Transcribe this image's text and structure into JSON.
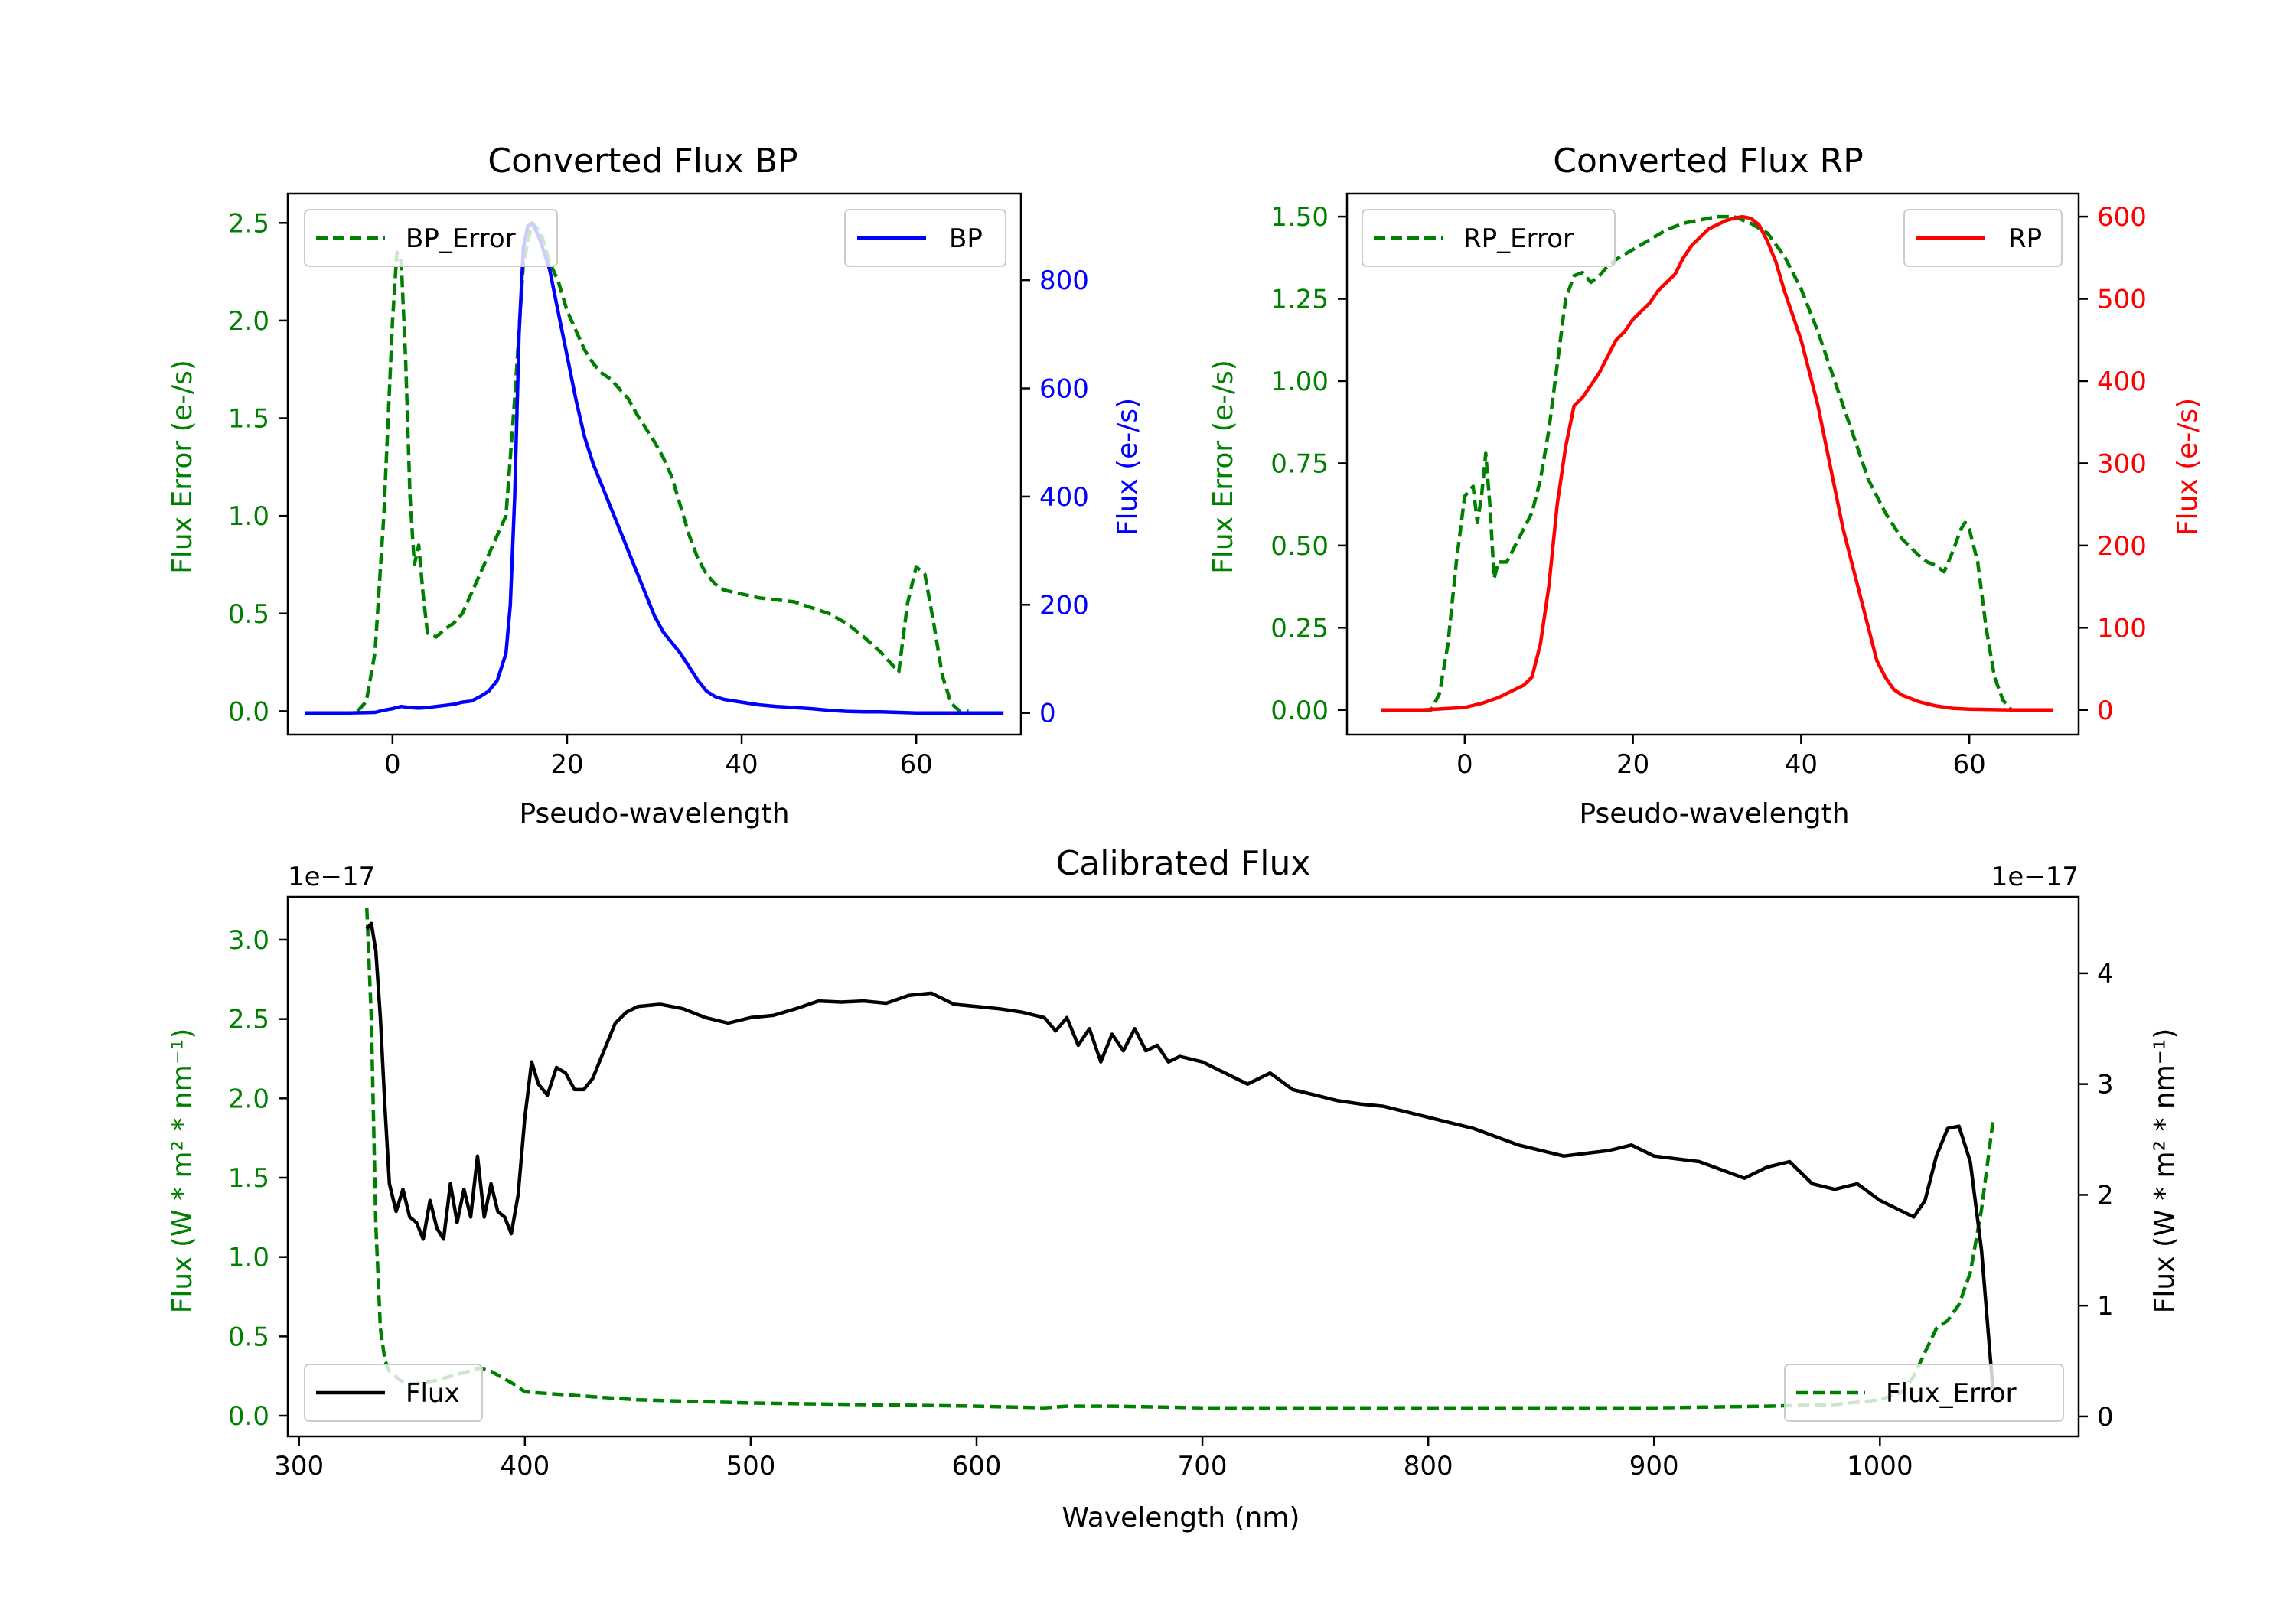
{
  "colors": {
    "green": "#008000",
    "blue": "#0000ff",
    "red": "#ff0000",
    "black": "#000000"
  },
  "chart_data": [
    {
      "type": "line",
      "title": "Converted Flux BP",
      "xlabel": "Pseudo-wavelength",
      "ylabel_left": "Flux Error (e-/s)",
      "ylabel_right": "Flux (e-/s)",
      "xlim": [
        -12,
        72
      ],
      "ylim_left": [
        -0.12,
        2.65
      ],
      "ylim_right": [
        -40,
        960
      ],
      "xticks": [
        0,
        20,
        40,
        60
      ],
      "yticks_left": [
        "0.0",
        "0.5",
        "1.0",
        "1.5",
        "2.0",
        "2.5"
      ],
      "yticks_right": [
        "0",
        "200",
        "400",
        "600",
        "800"
      ],
      "legend_left": "BP_Error",
      "legend_right": "BP",
      "series": [
        {
          "name": "BP_Error",
          "axis": "left",
          "style": "dashed",
          "color": "#008000",
          "x": [
            -4,
            -3,
            -2,
            -1,
            0,
            0.5,
            1,
            1.5,
            2,
            2.5,
            3,
            3.5,
            4,
            5,
            6,
            7,
            8,
            9,
            10,
            11,
            12,
            13,
            14,
            15,
            16,
            17,
            18,
            19,
            20,
            21,
            22,
            23,
            24,
            25,
            26,
            27,
            28,
            29,
            30,
            31,
            32,
            33,
            34,
            35,
            36,
            37,
            38,
            40,
            42,
            44,
            46,
            48,
            50,
            52,
            54,
            56,
            57,
            58,
            59,
            60,
            61,
            62,
            63,
            64,
            65,
            66
          ],
          "y": [
            0.0,
            0.05,
            0.3,
            1.0,
            2.0,
            2.35,
            2.3,
            1.8,
            1.1,
            0.75,
            0.85,
            0.6,
            0.4,
            0.38,
            0.42,
            0.45,
            0.5,
            0.6,
            0.7,
            0.8,
            0.9,
            1.0,
            1.6,
            2.3,
            2.5,
            2.45,
            2.3,
            2.2,
            2.05,
            1.95,
            1.85,
            1.78,
            1.73,
            1.7,
            1.65,
            1.6,
            1.52,
            1.45,
            1.38,
            1.3,
            1.2,
            1.05,
            0.9,
            0.78,
            0.7,
            0.65,
            0.62,
            0.6,
            0.58,
            0.57,
            0.56,
            0.53,
            0.5,
            0.45,
            0.38,
            0.3,
            0.25,
            0.2,
            0.55,
            0.74,
            0.7,
            0.45,
            0.18,
            0.04,
            0.0,
            0.0
          ]
        },
        {
          "name": "BP",
          "axis": "right",
          "style": "solid",
          "color": "#0000ff",
          "x": [
            -10,
            -5,
            -2,
            -1,
            0,
            1,
            2,
            3,
            4,
            5,
            6,
            7,
            8,
            9,
            10,
            11,
            12,
            13,
            13.5,
            14,
            14.5,
            15,
            15.5,
            16,
            16.5,
            17,
            18,
            19,
            20,
            21,
            22,
            23,
            24,
            25,
            26,
            27,
            28,
            29,
            30,
            31,
            32,
            33,
            34,
            35,
            36,
            37,
            38,
            40,
            42,
            44,
            46,
            48,
            50,
            52,
            54,
            56,
            58,
            60,
            62,
            64,
            66,
            68,
            70
          ],
          "y": [
            0,
            0,
            1,
            5,
            8,
            12,
            10,
            9,
            10,
            12,
            14,
            16,
            20,
            22,
            30,
            40,
            60,
            110,
            200,
            400,
            700,
            860,
            900,
            905,
            890,
            870,
            820,
            740,
            660,
            580,
            510,
            460,
            420,
            380,
            340,
            300,
            260,
            220,
            180,
            150,
            130,
            110,
            85,
            60,
            40,
            30,
            25,
            20,
            15,
            12,
            10,
            8,
            5,
            3,
            2,
            2,
            1,
            0,
            0,
            0,
            0,
            0,
            0
          ]
        }
      ]
    },
    {
      "type": "line",
      "title": "Converted Flux RP",
      "xlabel": "Pseudo-wavelength",
      "ylabel_left": "Flux Error (e-/s)",
      "ylabel_right": "Flux (e-/s)",
      "xlim": [
        -14,
        73
      ],
      "ylim_left": [
        -0.075,
        1.57
      ],
      "ylim_right": [
        -30,
        628
      ],
      "xticks": [
        0,
        20,
        40,
        60
      ],
      "yticks_left": [
        "0.00",
        "0.25",
        "0.50",
        "0.75",
        "1.00",
        "1.25",
        "1.50"
      ],
      "yticks_right": [
        "0",
        "100",
        "200",
        "300",
        "400",
        "500",
        "600"
      ],
      "legend_left": "RP_Error",
      "legend_right": "RP",
      "series": [
        {
          "name": "RP_Error",
          "axis": "left",
          "style": "dashed",
          "color": "#008000",
          "x": [
            -5,
            -4,
            -3,
            -2,
            -1,
            0,
            1,
            1.5,
            2,
            2.5,
            3,
            3.5,
            4,
            5,
            6,
            7,
            8,
            9,
            10,
            11,
            12,
            13,
            14,
            15,
            16,
            17,
            18,
            20,
            22,
            24,
            26,
            28,
            30,
            32,
            34,
            36,
            38,
            40,
            42,
            44,
            46,
            48,
            50,
            52,
            54,
            55,
            56,
            57,
            58,
            59,
            59.5,
            60,
            61,
            62,
            63,
            64,
            65
          ],
          "y": [
            0.0,
            0.0,
            0.05,
            0.2,
            0.45,
            0.65,
            0.68,
            0.57,
            0.65,
            0.78,
            0.62,
            0.4,
            0.45,
            0.45,
            0.5,
            0.55,
            0.6,
            0.7,
            0.85,
            1.05,
            1.25,
            1.32,
            1.33,
            1.3,
            1.32,
            1.35,
            1.37,
            1.4,
            1.43,
            1.46,
            1.48,
            1.49,
            1.5,
            1.5,
            1.48,
            1.45,
            1.38,
            1.28,
            1.15,
            1.0,
            0.85,
            0.7,
            0.6,
            0.52,
            0.47,
            0.45,
            0.44,
            0.42,
            0.48,
            0.55,
            0.57,
            0.55,
            0.45,
            0.25,
            0.1,
            0.03,
            0.0
          ]
        },
        {
          "name": "RP",
          "axis": "right",
          "style": "solid",
          "color": "#ff0000",
          "x": [
            -10,
            -5,
            0,
            2,
            4,
            6,
            7,
            8,
            9,
            10,
            11,
            12,
            13,
            14,
            15,
            16,
            17,
            18,
            19,
            20,
            21,
            22,
            23,
            24,
            25,
            26,
            27,
            28,
            29,
            30,
            31,
            32,
            33,
            34,
            35,
            36,
            37,
            38,
            39,
            40,
            41,
            42,
            43,
            44,
            45,
            46,
            47,
            48,
            49,
            50,
            51,
            52,
            54,
            56,
            58,
            60,
            65,
            70
          ],
          "y": [
            0,
            0,
            3,
            8,
            15,
            25,
            30,
            40,
            80,
            150,
            250,
            320,
            370,
            380,
            395,
            410,
            430,
            450,
            460,
            475,
            485,
            495,
            510,
            520,
            530,
            550,
            565,
            575,
            585,
            590,
            595,
            598,
            600,
            598,
            590,
            570,
            545,
            510,
            480,
            450,
            410,
            370,
            320,
            270,
            220,
            180,
            140,
            100,
            60,
            40,
            25,
            18,
            10,
            5,
            2,
            1,
            0,
            0
          ]
        }
      ]
    },
    {
      "type": "line",
      "title": "Calibrated Flux",
      "xlabel": "Wavelength (nm)",
      "ylabel_left": "Flux (W * m² * nm⁻¹)",
      "ylabel_right": "Flux (W * m² * nm⁻¹)",
      "offset_left": "1e−17",
      "offset_right": "1e−17",
      "xlim": [
        295,
        1088
      ],
      "ylim_left": [
        -0.13,
        3.27
      ],
      "ylim_right": [
        -0.18,
        4.69
      ],
      "xticks": [
        300,
        400,
        500,
        600,
        700,
        800,
        900,
        1000
      ],
      "yticks_left": [
        "0.0",
        "0.5",
        "1.0",
        "1.5",
        "2.0",
        "2.5",
        "3.0"
      ],
      "yticks_right": [
        "0",
        "1",
        "2",
        "3",
        "4"
      ],
      "legend_left": "Flux",
      "legend_right": "Flux_Error",
      "series": [
        {
          "name": "Flux_Error",
          "axis": "left",
          "style": "dashed",
          "color": "#008000",
          "x": [
            330,
            332,
            334,
            336,
            338,
            340,
            345,
            350,
            360,
            370,
            375,
            380,
            385,
            390,
            395,
            400,
            410,
            420,
            430,
            450,
            500,
            550,
            600,
            630,
            640,
            660,
            700,
            750,
            800,
            850,
            900,
            950,
            980,
            1000,
            1010,
            1015,
            1020,
            1025,
            1030,
            1035,
            1040,
            1045,
            1050
          ],
          "y": [
            3.2,
            2.5,
            1.2,
            0.55,
            0.35,
            0.28,
            0.22,
            0.2,
            0.22,
            0.26,
            0.28,
            0.3,
            0.28,
            0.24,
            0.2,
            0.15,
            0.14,
            0.13,
            0.12,
            0.1,
            0.08,
            0.07,
            0.06,
            0.05,
            0.06,
            0.06,
            0.05,
            0.05,
            0.05,
            0.05,
            0.05,
            0.06,
            0.07,
            0.1,
            0.15,
            0.25,
            0.4,
            0.55,
            0.6,
            0.7,
            0.9,
            1.3,
            1.85
          ]
        },
        {
          "name": "Flux",
          "axis": "right",
          "style": "solid",
          "color": "#000000",
          "x": [
            330,
            332,
            334,
            336,
            338,
            340,
            343,
            346,
            349,
            352,
            355,
            358,
            361,
            364,
            367,
            370,
            373,
            376,
            379,
            382,
            385,
            388,
            391,
            394,
            397,
            400,
            403,
            406,
            410,
            414,
            418,
            422,
            426,
            430,
            435,
            440,
            445,
            450,
            460,
            470,
            480,
            490,
            500,
            510,
            520,
            530,
            540,
            550,
            560,
            570,
            580,
            590,
            600,
            610,
            620,
            630,
            635,
            640,
            645,
            650,
            655,
            660,
            665,
            670,
            675,
            680,
            685,
            690,
            700,
            710,
            720,
            730,
            740,
            750,
            760,
            770,
            780,
            790,
            800,
            820,
            840,
            860,
            880,
            890,
            900,
            920,
            940,
            950,
            960,
            970,
            980,
            990,
            1000,
            1010,
            1015,
            1020,
            1025,
            1030,
            1035,
            1040,
            1045,
            1050
          ],
          "y": [
            4.4,
            4.45,
            4.2,
            3.6,
            2.8,
            2.1,
            1.85,
            2.05,
            1.8,
            1.75,
            1.6,
            1.95,
            1.7,
            1.6,
            2.1,
            1.75,
            2.05,
            1.8,
            2.35,
            1.8,
            2.1,
            1.85,
            1.8,
            1.65,
            2.0,
            2.7,
            3.2,
            3.0,
            2.9,
            3.15,
            3.1,
            2.95,
            2.95,
            3.05,
            3.3,
            3.55,
            3.65,
            3.7,
            3.72,
            3.68,
            3.6,
            3.55,
            3.6,
            3.62,
            3.68,
            3.75,
            3.74,
            3.75,
            3.73,
            3.8,
            3.82,
            3.72,
            3.7,
            3.68,
            3.65,
            3.6,
            3.48,
            3.6,
            3.35,
            3.5,
            3.2,
            3.45,
            3.3,
            3.5,
            3.3,
            3.35,
            3.2,
            3.25,
            3.2,
            3.1,
            3.0,
            3.1,
            2.95,
            2.9,
            2.85,
            2.82,
            2.8,
            2.75,
            2.7,
            2.6,
            2.45,
            2.35,
            2.4,
            2.45,
            2.35,
            2.3,
            2.15,
            2.25,
            2.3,
            2.1,
            2.05,
            2.1,
            1.95,
            1.85,
            1.8,
            1.95,
            2.35,
            2.6,
            2.62,
            2.3,
            1.5,
            0.25
          ]
        }
      ]
    }
  ]
}
